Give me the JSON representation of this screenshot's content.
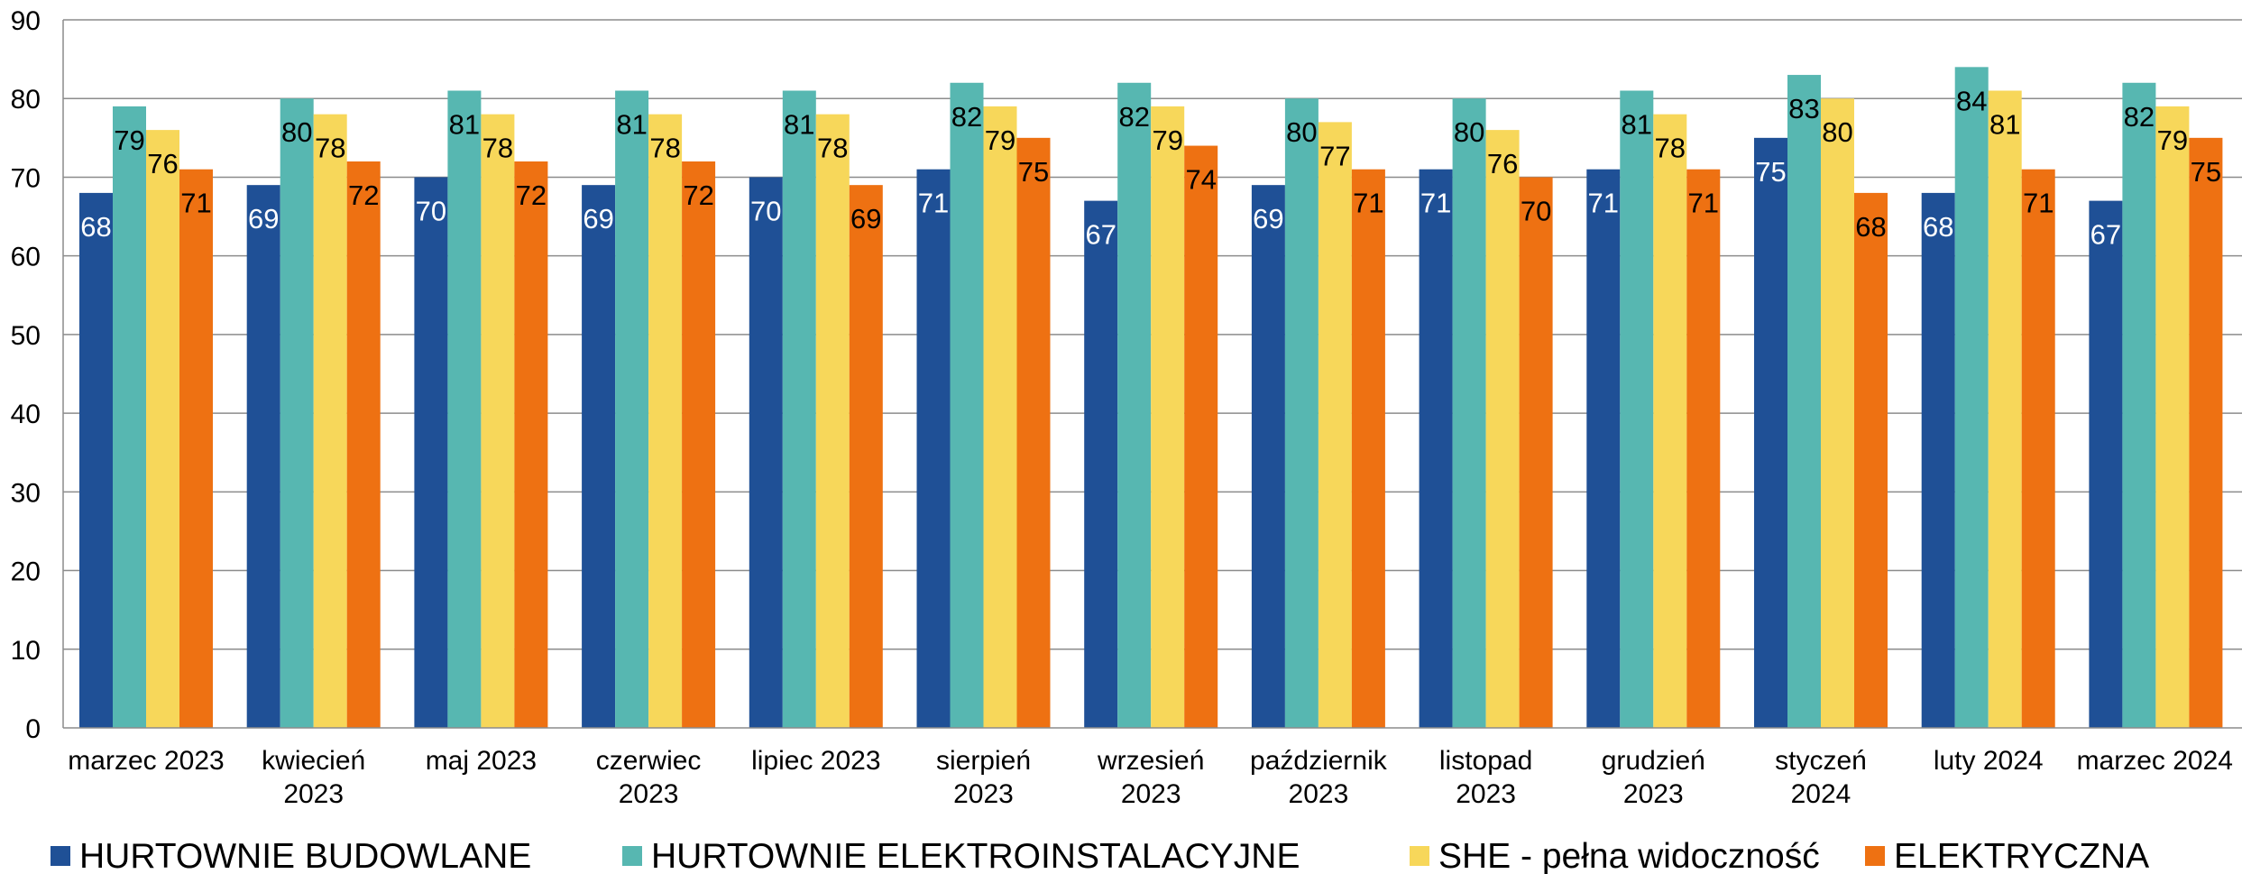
{
  "chart_data": {
    "type": "bar",
    "categories": [
      [
        "marzec 2023"
      ],
      [
        "kwiecień",
        "2023"
      ],
      [
        "maj 2023"
      ],
      [
        "czerwiec",
        "2023"
      ],
      [
        "lipiec 2023"
      ],
      [
        "sierpień",
        "2023"
      ],
      [
        "wrzesień",
        "2023"
      ],
      [
        "październik",
        "2023"
      ],
      [
        "listopad",
        "2023"
      ],
      [
        "grudzień",
        "2023"
      ],
      [
        "styczeń",
        "2024"
      ],
      [
        "luty 2024"
      ],
      [
        "marzec 2024"
      ]
    ],
    "series": [
      {
        "name": "HURTOWNIE BUDOWLANE",
        "color": "#1f5096",
        "label_color": "#ffffff",
        "values": [
          68,
          69,
          70,
          69,
          70,
          71,
          67,
          69,
          71,
          71,
          75,
          68,
          67
        ]
      },
      {
        "name": "HURTOWNIE ELEKTROINSTALACYJNE",
        "color": "#57b7b1",
        "label_color": "#000000",
        "values": [
          79,
          80,
          81,
          81,
          81,
          82,
          82,
          80,
          80,
          81,
          83,
          84,
          82
        ]
      },
      {
        "name": "SHE - pełna widoczność",
        "color": "#f7d75a",
        "label_color": "#000000",
        "values": [
          76,
          78,
          78,
          78,
          78,
          79,
          79,
          77,
          76,
          78,
          80,
          81,
          79
        ]
      },
      {
        "name": "ELEKTRYCZNA",
        "color": "#ee7112",
        "label_color": "#000000",
        "values": [
          71,
          72,
          72,
          72,
          69,
          75,
          74,
          71,
          70,
          71,
          68,
          71,
          75
        ]
      }
    ],
    "yticks": [
      "0",
      "10",
      "20",
      "30",
      "40",
      "50",
      "60",
      "70",
      "80",
      "90"
    ],
    "ylim": [
      0,
      90
    ],
    "grid": true,
    "legend_position": "bottom",
    "title": "",
    "xlabel": "",
    "ylabel": ""
  }
}
